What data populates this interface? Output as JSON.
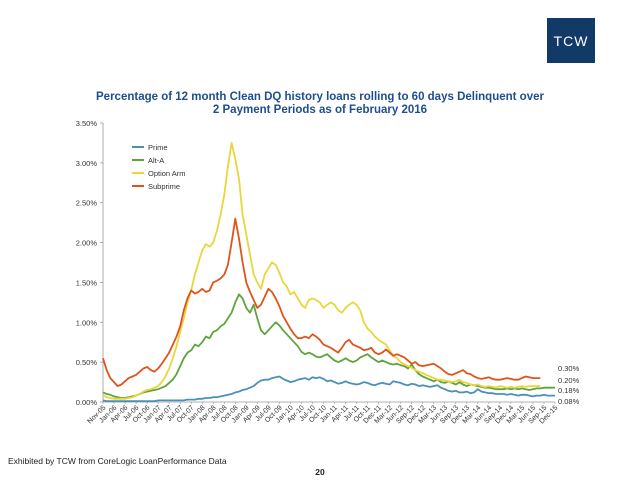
{
  "brand": {
    "logo_text": "TCW",
    "logo_bg": "#123a66",
    "logo_fg": "#ffffff"
  },
  "footer": {
    "note": "Exhibited by TCW from CoreLogic LoanPerformance Data",
    "page_number": "20"
  },
  "colors": {
    "title": "#1f4e8c",
    "axis": "#333333"
  },
  "chart_data": {
    "type": "line",
    "title_line1": "Percentage of 12 month Clean DQ history loans rolling to 60 days Delinquent over",
    "title_line2": "2 Payment Periods as of February 2016",
    "xlabel": "",
    "ylabel": "",
    "ylim": [
      0,
      3.5
    ],
    "yticks": [
      "0.00%",
      "0.50%",
      "1.00%",
      "1.50%",
      "2.00%",
      "2.50%",
      "3.00%",
      "3.50%"
    ],
    "x_tick_labels": [
      "Nov-05",
      "Jan-06",
      "Apr-06",
      "Jul-06",
      "Oct-06",
      "Jan-07",
      "Apr-07",
      "Jul-07",
      "Oct-07",
      "Jan-08",
      "Apr-08",
      "Jul-08",
      "Oct-08",
      "Jan-09",
      "Apr-09",
      "Jul-09",
      "Oct-09",
      "Jan-10",
      "Apr-10",
      "Jul-10",
      "Oct-10",
      "Jan-11",
      "Apr-11",
      "Jul-11",
      "Oct-11",
      "Dec-11",
      "Mar-12",
      "Jun-12",
      "Sep-12",
      "Dec-12",
      "Mar-13",
      "Jun-13",
      "Sep-13",
      "Dec-13",
      "Mar-14",
      "Jun-14",
      "Sep-14",
      "Dec-14",
      "Mar-15",
      "Jun-15",
      "Sep-15",
      "Dec-15"
    ],
    "grid": false,
    "legend_position": "top-left",
    "end_labels": [
      "0.30%",
      "0.20%",
      "0.18%",
      "0.08%"
    ],
    "series": [
      {
        "name": "Prime",
        "color": "#4a90b8",
        "values": [
          0.02,
          0.01,
          0.01,
          0.01,
          0.01,
          0.01,
          0.01,
          0.01,
          0.01,
          0.01,
          0.01,
          0.01,
          0.01,
          0.01,
          0.01,
          0.02,
          0.02,
          0.02,
          0.02,
          0.02,
          0.02,
          0.02,
          0.02,
          0.03,
          0.03,
          0.03,
          0.04,
          0.04,
          0.05,
          0.05,
          0.06,
          0.06,
          0.07,
          0.08,
          0.09,
          0.1,
          0.12,
          0.13,
          0.15,
          0.16,
          0.18,
          0.2,
          0.24,
          0.27,
          0.28,
          0.28,
          0.3,
          0.31,
          0.32,
          0.29,
          0.27,
          0.25,
          0.26,
          0.28,
          0.29,
          0.3,
          0.28,
          0.31,
          0.3,
          0.31,
          0.29,
          0.26,
          0.27,
          0.25,
          0.23,
          0.24,
          0.26,
          0.24,
          0.23,
          0.22,
          0.23,
          0.25,
          0.24,
          0.22,
          0.21,
          0.23,
          0.24,
          0.23,
          0.22,
          0.26,
          0.25,
          0.24,
          0.22,
          0.21,
          0.23,
          0.22,
          0.2,
          0.21,
          0.2,
          0.19,
          0.2,
          0.21,
          0.18,
          0.16,
          0.14,
          0.13,
          0.14,
          0.12,
          0.12,
          0.13,
          0.11,
          0.12,
          0.16,
          0.13,
          0.12,
          0.11,
          0.11,
          0.1,
          0.1,
          0.1,
          0.09,
          0.1,
          0.09,
          0.08,
          0.09,
          0.09,
          0.08,
          0.07,
          0.08,
          0.08,
          0.09,
          0.08,
          0.08,
          0.08
        ]
      },
      {
        "name": "Alt-A",
        "color": "#5fa33e",
        "values": [
          0.12,
          0.1,
          0.09,
          0.07,
          0.06,
          0.05,
          0.05,
          0.06,
          0.07,
          0.08,
          0.1,
          0.12,
          0.13,
          0.14,
          0.15,
          0.16,
          0.18,
          0.2,
          0.24,
          0.28,
          0.35,
          0.45,
          0.55,
          0.62,
          0.65,
          0.72,
          0.7,
          0.75,
          0.82,
          0.8,
          0.88,
          0.9,
          0.95,
          0.98,
          1.05,
          1.12,
          1.25,
          1.35,
          1.3,
          1.18,
          1.12,
          1.22,
          1.05,
          0.9,
          0.85,
          0.9,
          0.95,
          1.0,
          0.96,
          0.9,
          0.85,
          0.8,
          0.75,
          0.7,
          0.63,
          0.6,
          0.62,
          0.6,
          0.57,
          0.56,
          0.58,
          0.6,
          0.56,
          0.52,
          0.5,
          0.52,
          0.55,
          0.52,
          0.5,
          0.52,
          0.56,
          0.58,
          0.6,
          0.56,
          0.53,
          0.5,
          0.52,
          0.5,
          0.48,
          0.47,
          0.48,
          0.46,
          0.45,
          0.42,
          0.47,
          0.4,
          0.35,
          0.32,
          0.3,
          0.28,
          0.26,
          0.28,
          0.25,
          0.24,
          0.26,
          0.24,
          0.22,
          0.25,
          0.22,
          0.2,
          0.22,
          0.21,
          0.2,
          0.19,
          0.18,
          0.18,
          0.17,
          0.16,
          0.16,
          0.16,
          0.17,
          0.16,
          0.17,
          0.16,
          0.17,
          0.16,
          0.15,
          0.16,
          0.17,
          0.17,
          0.18,
          0.18,
          0.18,
          0.18
        ]
      },
      {
        "name": "Option Arm",
        "color": "#e8d63a",
        "values": [
          0.08,
          0.06,
          0.05,
          0.04,
          0.04,
          0.04,
          0.04,
          0.05,
          0.06,
          0.08,
          0.1,
          0.13,
          0.15,
          0.16,
          0.18,
          0.2,
          0.25,
          0.32,
          0.42,
          0.55,
          0.7,
          0.88,
          1.05,
          1.25,
          1.4,
          1.6,
          1.75,
          1.9,
          1.98,
          1.95,
          2.0,
          2.15,
          2.35,
          2.6,
          2.95,
          3.25,
          3.05,
          2.8,
          2.35,
          2.1,
          1.85,
          1.6,
          1.5,
          1.42,
          1.6,
          1.68,
          1.75,
          1.72,
          1.62,
          1.5,
          1.45,
          1.35,
          1.38,
          1.3,
          1.22,
          1.18,
          1.28,
          1.3,
          1.28,
          1.25,
          1.18,
          1.22,
          1.25,
          1.22,
          1.15,
          1.12,
          1.18,
          1.22,
          1.25,
          1.22,
          1.15,
          1.0,
          0.92,
          0.88,
          0.82,
          0.78,
          0.75,
          0.72,
          0.65,
          0.58,
          0.55,
          0.5,
          0.47,
          0.45,
          0.43,
          0.4,
          0.38,
          0.36,
          0.34,
          0.32,
          0.3,
          0.28,
          0.28,
          0.27,
          0.26,
          0.25,
          0.26,
          0.28,
          0.25,
          0.24,
          0.22,
          0.21,
          0.22,
          0.2,
          0.19,
          0.2,
          0.19,
          0.18,
          0.2,
          0.19,
          0.18,
          0.19,
          0.18,
          0.19,
          0.2,
          0.19,
          0.2,
          0.2,
          0.2,
          0.2
        ]
      },
      {
        "name": "Subprime",
        "color": "#e0531a",
        "values": [
          0.55,
          0.4,
          0.3,
          0.25,
          0.2,
          0.22,
          0.26,
          0.3,
          0.32,
          0.34,
          0.38,
          0.42,
          0.44,
          0.4,
          0.38,
          0.42,
          0.48,
          0.55,
          0.62,
          0.72,
          0.82,
          0.95,
          1.15,
          1.3,
          1.4,
          1.36,
          1.38,
          1.42,
          1.38,
          1.4,
          1.5,
          1.52,
          1.55,
          1.6,
          1.72,
          2.0,
          2.3,
          2.05,
          1.75,
          1.5,
          1.38,
          1.28,
          1.18,
          1.22,
          1.32,
          1.42,
          1.38,
          1.3,
          1.2,
          1.08,
          1.0,
          0.92,
          0.85,
          0.8,
          0.8,
          0.82,
          0.8,
          0.85,
          0.82,
          0.78,
          0.72,
          0.7,
          0.68,
          0.65,
          0.62,
          0.68,
          0.75,
          0.78,
          0.72,
          0.7,
          0.68,
          0.65,
          0.66,
          0.68,
          0.62,
          0.6,
          0.62,
          0.66,
          0.62,
          0.58,
          0.6,
          0.58,
          0.56,
          0.52,
          0.48,
          0.5,
          0.46,
          0.45,
          0.46,
          0.47,
          0.48,
          0.45,
          0.42,
          0.38,
          0.35,
          0.34,
          0.36,
          0.38,
          0.4,
          0.36,
          0.35,
          0.32,
          0.3,
          0.29,
          0.3,
          0.31,
          0.29,
          0.28,
          0.28,
          0.29,
          0.3,
          0.29,
          0.28,
          0.28,
          0.3,
          0.32,
          0.31,
          0.3,
          0.3,
          0.3
        ]
      }
    ]
  }
}
